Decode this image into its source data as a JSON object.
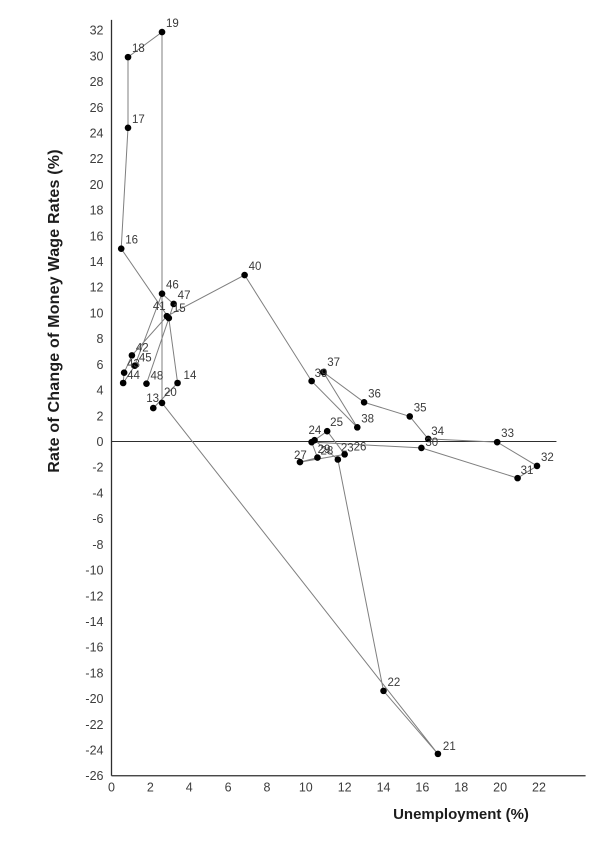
{
  "chart_data": {
    "type": "scatter",
    "connected": true,
    "title": "",
    "xlabel": "Unemployment (%)",
    "ylabel": "Rate of Change of Money Wage Rates (%)",
    "xlim": [
      0,
      24.4
    ],
    "ylim": [
      -26,
      32.8
    ],
    "xticks": [
      0,
      2,
      4,
      6,
      8,
      10,
      12,
      14,
      16,
      18,
      20,
      22
    ],
    "yticks": [
      32,
      30,
      28,
      26,
      24,
      22,
      20,
      18,
      16,
      14,
      12,
      10,
      8,
      6,
      4,
      2,
      0,
      -2,
      -4,
      -6,
      -8,
      -10,
      -12,
      -14,
      -16,
      -18,
      -20,
      -22,
      -24,
      -26
    ],
    "grid": false,
    "zero_line": true,
    "legend": "none",
    "colors": {
      "point": "#000000",
      "line": "#7f7f7f",
      "axis": "#2e2e2e",
      "tick_text": "#3d3d3d",
      "label_text": "#3a3a3a"
    },
    "series": [
      {
        "name": "years-1913-1948",
        "points": [
          {
            "label": "13",
            "x": 2.15,
            "y": 2.6,
            "dx": -7,
            "dy": -6
          },
          {
            "label": "14",
            "x": 3.4,
            "y": 4.55,
            "dx": 6,
            "dy": -4
          },
          {
            "label": "15",
            "x": 2.95,
            "y": 9.6,
            "dx": 4,
            "dy": -6
          },
          {
            "label": "16",
            "x": 0.5,
            "y": 15.0,
            "dx": 4,
            "dy": -5
          },
          {
            "label": "17",
            "x": 0.85,
            "y": 24.4,
            "dx": 4,
            "dy": -5
          },
          {
            "label": "18",
            "x": 0.85,
            "y": 29.9,
            "dx": 4,
            "dy": -5
          },
          {
            "label": "19",
            "x": 2.6,
            "y": 31.85,
            "dx": 4,
            "dy": -5
          },
          {
            "label": "20",
            "x": 2.6,
            "y": 3.0,
            "dx": 2,
            "dy": -7
          },
          {
            "label": "21",
            "x": 16.8,
            "y": -24.3,
            "dx": 5,
            "dy": -4
          },
          {
            "label": "22",
            "x": 14.0,
            "y": -19.4,
            "dx": 4,
            "dy": -5
          },
          {
            "label": "23",
            "x": 11.65,
            "y": -1.4,
            "dx": 3,
            "dy": -8
          },
          {
            "label": "24",
            "x": 10.45,
            "y": 0.1,
            "dx": -6,
            "dy": -6
          },
          {
            "label": "25",
            "x": 11.1,
            "y": 0.8,
            "dx": 3,
            "dy": -5
          },
          {
            "label": "26",
            "x": 12.0,
            "y": -1.0,
            "dx": 9,
            "dy": -4
          },
          {
            "label": "27",
            "x": 9.7,
            "y": -1.6,
            "dx": -6,
            "dy": -3
          },
          {
            "label": "28",
            "x": 10.6,
            "y": -1.25,
            "dx": 3,
            "dy": -3
          },
          {
            "label": "29",
            "x": 10.3,
            "y": -0.05,
            "dx": 6,
            "dy": 11
          },
          {
            "label": "30",
            "x": 15.95,
            "y": -0.5,
            "dx": 4,
            "dy": -2
          },
          {
            "label": "31",
            "x": 20.9,
            "y": -2.85,
            "dx": 3,
            "dy": -4
          },
          {
            "label": "32",
            "x": 21.9,
            "y": -1.9,
            "dx": 4,
            "dy": -5
          },
          {
            "label": "33",
            "x": 19.85,
            "y": -0.05,
            "dx": 4,
            "dy": -5
          },
          {
            "label": "34",
            "x": 16.3,
            "y": 0.2,
            "dx": 3,
            "dy": -4
          },
          {
            "label": "35",
            "x": 15.35,
            "y": 1.95,
            "dx": 4,
            "dy": -5
          },
          {
            "label": "36",
            "x": 13.0,
            "y": 3.05,
            "dx": 4,
            "dy": -5
          },
          {
            "label": "37",
            "x": 10.9,
            "y": 5.4,
            "dx": 4,
            "dy": -6
          },
          {
            "label": "38",
            "x": 12.65,
            "y": 1.1,
            "dx": 4,
            "dy": -5
          },
          {
            "label": "39",
            "x": 10.3,
            "y": 4.7,
            "dx": 3,
            "dy": -4
          },
          {
            "label": "40",
            "x": 6.85,
            "y": 12.95,
            "dx": 4,
            "dy": -5
          },
          {
            "label": "41",
            "x": 2.85,
            "y": 9.75,
            "dx": -14,
            "dy": -6
          },
          {
            "label": "42",
            "x": 1.05,
            "y": 6.7,
            "dx": 4,
            "dy": -4
          },
          {
            "label": "43",
            "x": 0.65,
            "y": 5.35,
            "dx": 3,
            "dy": -5
          },
          {
            "label": "44",
            "x": 0.6,
            "y": 4.55,
            "dx": 4,
            "dy": -4
          },
          {
            "label": "45",
            "x": 1.2,
            "y": 5.9,
            "dx": 4,
            "dy": -4
          },
          {
            "label": "46",
            "x": 2.6,
            "y": 11.5,
            "dx": 4,
            "dy": -5
          },
          {
            "label": "47",
            "x": 3.2,
            "y": 10.7,
            "dx": 4,
            "dy": -5
          },
          {
            "label": "48",
            "x": 1.8,
            "y": 4.5,
            "dx": 4,
            "dy": -4
          }
        ]
      }
    ]
  }
}
